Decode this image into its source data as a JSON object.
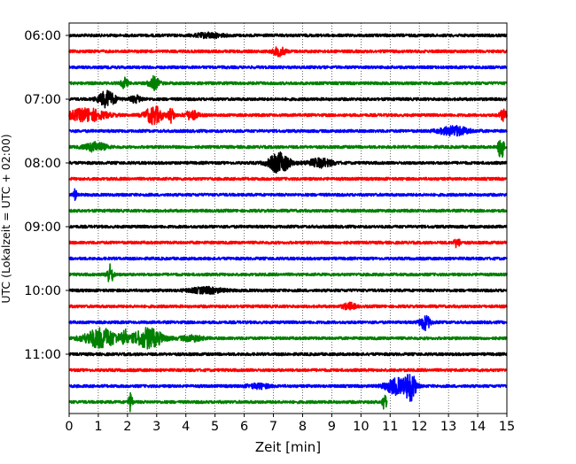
{
  "chart_data": {
    "type": "line",
    "title": "",
    "xlabel": "Zeit  [min]",
    "ylabel": "UTC (Lokalzeit = UTC + 02:00)",
    "xlim": [
      0,
      15
    ],
    "x_ticks": [
      0,
      1,
      2,
      3,
      4,
      5,
      6,
      7,
      8,
      9,
      10,
      11,
      12,
      13,
      14,
      15
    ],
    "x_tick_labels": [
      "0",
      "1",
      "2",
      "3",
      "4",
      "5",
      "6",
      "7",
      "8",
      "9",
      "10",
      "11",
      "12",
      "13",
      "14",
      "15"
    ],
    "y_tick_labels": [
      "06:00",
      "07:00",
      "08:00",
      "09:00",
      "10:00",
      "11:00"
    ],
    "grid": "vertical dotted",
    "trace_interval_min": 15,
    "colors": [
      "#000000",
      "#ff0000",
      "#0000ff",
      "#008000"
    ],
    "traces": [
      {
        "start": "06:00",
        "events": [
          {
            "t": 4.8,
            "amp": 0.25,
            "w": 0.6
          }
        ]
      },
      {
        "start": "06:15",
        "events": [
          {
            "t": 7.2,
            "amp": 0.45,
            "w": 0.3
          }
        ]
      },
      {
        "start": "06:30",
        "events": []
      },
      {
        "start": "06:45",
        "events": [
          {
            "t": 1.9,
            "amp": 0.6,
            "w": 0.15
          },
          {
            "t": 2.9,
            "amp": 0.7,
            "w": 0.25
          }
        ]
      },
      {
        "start": "07:00",
        "events": [
          {
            "t": 1.3,
            "amp": 0.9,
            "w": 0.4
          },
          {
            "t": 2.3,
            "amp": 0.35,
            "w": 0.3
          }
        ]
      },
      {
        "start": "07:15",
        "events": [
          {
            "t": 0.6,
            "amp": 0.7,
            "w": 0.9
          },
          {
            "t": 2.9,
            "amp": 1.0,
            "w": 0.4
          },
          {
            "t": 3.5,
            "amp": 0.8,
            "w": 0.15
          },
          {
            "t": 4.2,
            "amp": 0.5,
            "w": 0.3
          },
          {
            "t": 14.9,
            "amp": 0.6,
            "w": 0.2
          }
        ]
      },
      {
        "start": "07:30",
        "events": [
          {
            "t": 13.2,
            "amp": 0.5,
            "w": 0.7
          }
        ]
      },
      {
        "start": "07:45",
        "events": [
          {
            "t": 0.9,
            "amp": 0.5,
            "w": 0.5
          },
          {
            "t": 14.8,
            "amp": 1.6,
            "w": 0.12
          }
        ]
      },
      {
        "start": "08:00",
        "events": [
          {
            "t": 7.2,
            "amp": 1.1,
            "w": 0.5
          },
          {
            "t": 8.6,
            "amp": 0.45,
            "w": 0.6
          }
        ]
      },
      {
        "start": "08:15",
        "events": []
      },
      {
        "start": "08:30",
        "events": [
          {
            "t": 0.2,
            "amp": 0.6,
            "w": 0.08
          }
        ]
      },
      {
        "start": "08:45",
        "events": []
      },
      {
        "start": "09:00",
        "events": []
      },
      {
        "start": "09:15",
        "events": [
          {
            "t": 13.3,
            "amp": 0.5,
            "w": 0.15
          }
        ]
      },
      {
        "start": "09:30",
        "events": []
      },
      {
        "start": "09:45",
        "events": [
          {
            "t": 1.4,
            "amp": 1.1,
            "w": 0.15
          }
        ]
      },
      {
        "start": "10:00",
        "events": [
          {
            "t": 4.7,
            "amp": 0.3,
            "w": 0.8
          }
        ]
      },
      {
        "start": "10:15",
        "events": [
          {
            "t": 9.6,
            "amp": 0.35,
            "w": 0.3
          }
        ]
      },
      {
        "start": "10:30",
        "events": [
          {
            "t": 12.2,
            "amp": 0.8,
            "w": 0.25
          }
        ]
      },
      {
        "start": "10:45",
        "events": [
          {
            "t": 1.1,
            "amp": 1.1,
            "w": 0.8
          },
          {
            "t": 1.9,
            "amp": 0.9,
            "w": 0.12
          },
          {
            "t": 2.7,
            "amp": 1.1,
            "w": 0.7
          },
          {
            "t": 4.2,
            "amp": 0.3,
            "w": 0.5
          }
        ]
      },
      {
        "start": "11:00",
        "events": []
      },
      {
        "start": "11:15",
        "events": []
      },
      {
        "start": "11:30",
        "events": [
          {
            "t": 11.2,
            "amp": 0.9,
            "w": 0.5
          },
          {
            "t": 11.7,
            "amp": 1.6,
            "w": 0.25
          },
          {
            "t": 6.5,
            "amp": 0.25,
            "w": 0.5
          }
        ]
      },
      {
        "start": "11:45",
        "end_min": 10.9,
        "events": [
          {
            "t": 2.1,
            "amp": 1.0,
            "w": 0.1
          },
          {
            "t": 10.8,
            "amp": 0.9,
            "w": 0.1
          }
        ]
      }
    ]
  }
}
